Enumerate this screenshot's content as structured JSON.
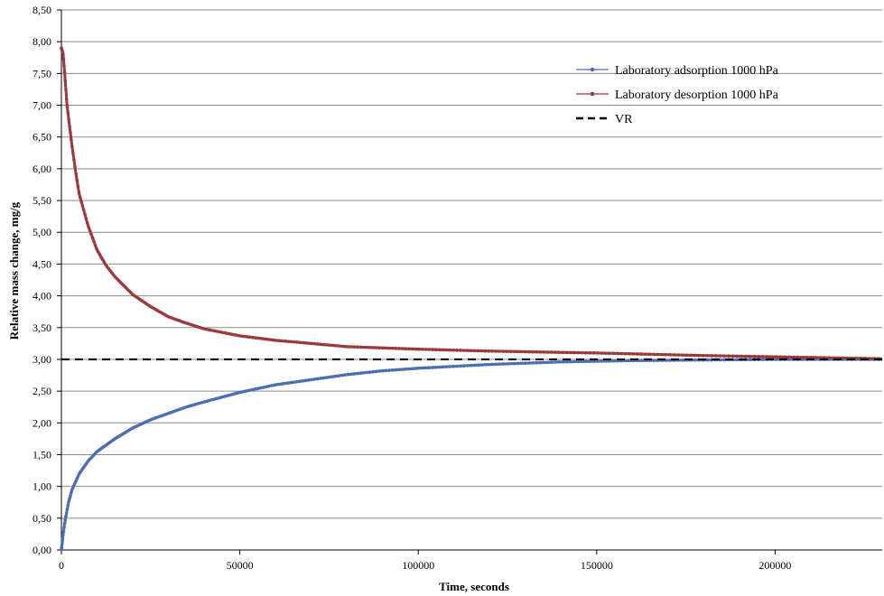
{
  "chart_data": {
    "type": "line",
    "title": "",
    "xlabel": "Time, seconds",
    "ylabel": "Relative mass change, mg/g",
    "xlim": [
      0,
      230000
    ],
    "ylim": [
      0,
      8.5
    ],
    "xticks": [
      0,
      50000,
      100000,
      150000,
      200000
    ],
    "xtick_labels": [
      "0",
      "50000",
      "100000",
      "150000",
      "200000"
    ],
    "yticks": [
      0,
      0.5,
      1,
      1.5,
      2,
      2.5,
      3,
      3.5,
      4,
      4.5,
      5,
      5.5,
      6,
      6.5,
      7,
      7.5,
      8,
      8.5
    ],
    "ytick_labels": [
      "0,00",
      "0,50",
      "1,00",
      "1,50",
      "2,00",
      "2,50",
      "3,00",
      "3,50",
      "4,00",
      "4,50",
      "5,00",
      "5,50",
      "6,00",
      "6,50",
      "7,00",
      "7,50",
      "8,00",
      "8,50"
    ],
    "grid": "horizontal",
    "legend_position": "top-right",
    "series": [
      {
        "name": "Laboratory adsorption 1000 hPa",
        "color": "#4a6fb5",
        "style": "solid-markers",
        "x": [
          0,
          500,
          1000,
          2000,
          3000,
          5000,
          7500,
          10000,
          15000,
          20000,
          25000,
          30000,
          35000,
          40000,
          50000,
          60000,
          70000,
          80000,
          90000,
          100000,
          120000,
          140000,
          160000,
          180000,
          200000,
          220000,
          230000
        ],
        "y": [
          0.0,
          0.25,
          0.45,
          0.75,
          0.95,
          1.2,
          1.4,
          1.55,
          1.75,
          1.92,
          2.05,
          2.15,
          2.25,
          2.33,
          2.48,
          2.6,
          2.68,
          2.76,
          2.82,
          2.86,
          2.92,
          2.96,
          2.98,
          2.99,
          3.0,
          3.0,
          3.0
        ]
      },
      {
        "name": "Laboratory desorption 1000 hPa",
        "color": "#9b3a3a",
        "style": "solid-markers",
        "x": [
          0,
          500,
          1000,
          1500,
          2000,
          3000,
          4000,
          5000,
          7500,
          10000,
          12500,
          15000,
          20000,
          25000,
          30000,
          35000,
          40000,
          50000,
          60000,
          70000,
          80000,
          100000,
          120000,
          150000,
          180000,
          200000,
          230000
        ],
        "y": [
          7.9,
          7.8,
          7.45,
          7.05,
          6.8,
          6.35,
          5.95,
          5.6,
          5.1,
          4.72,
          4.48,
          4.3,
          4.02,
          3.83,
          3.67,
          3.57,
          3.48,
          3.37,
          3.3,
          3.25,
          3.2,
          3.16,
          3.13,
          3.1,
          3.06,
          3.04,
          3.01
        ]
      },
      {
        "name": "VR",
        "color": "#000000",
        "style": "dashed",
        "x": [
          0,
          230000
        ],
        "y": [
          3.0,
          3.0
        ]
      }
    ]
  }
}
